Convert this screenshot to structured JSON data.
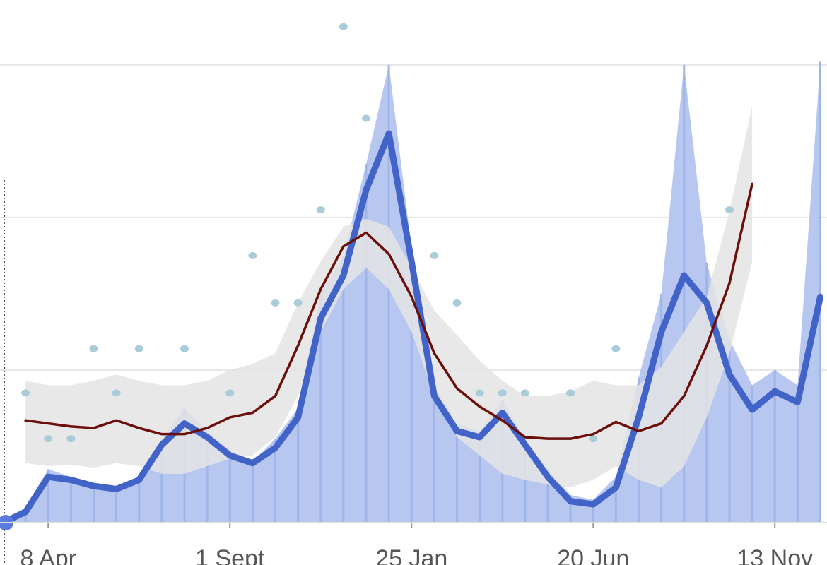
{
  "chart_data": {
    "type": "line",
    "categories": [
      null,
      null,
      "8 Apr",
      null,
      null,
      null,
      null,
      null,
      null,
      null,
      "1 Sept",
      null,
      null,
      null,
      null,
      null,
      null,
      null,
      "25 Jan",
      null,
      null,
      null,
      null,
      null,
      null,
      null,
      "20 Jun",
      null,
      null,
      null,
      null,
      null,
      null,
      null,
      "13 Nov",
      null,
      null
    ],
    "ylim": [
      0,
      330
    ],
    "gridlines": [
      100,
      200,
      300
    ],
    "grid_color": "#e8e8e8",
    "band": {
      "color": "#e4e4e4",
      "upper": [
        null,
        93,
        90,
        90,
        93,
        97,
        93,
        90,
        90,
        93,
        100,
        104,
        111,
        144,
        171,
        194,
        199,
        194,
        167,
        139,
        123,
        106,
        93,
        83,
        83,
        86,
        93,
        90,
        90,
        102,
        125,
        148,
        204,
        273,
        null,
        null,
        null
      ],
      "lower": [
        null,
        39,
        37,
        38,
        36,
        39,
        37,
        32,
        32,
        37,
        42,
        44,
        56,
        83,
        125,
        153,
        167,
        153,
        125,
        83,
        56,
        44,
        32,
        28,
        25,
        23,
        28,
        37,
        28,
        23,
        37,
        69,
        111,
        171,
        null,
        null,
        null
      ]
    },
    "series": [
      {
        "style": "bars",
        "color": "#b7c7ef",
        "line_color": "#9fb5ea",
        "values": [
          0,
          10,
          35,
          30,
          26,
          22,
          30,
          55,
          75,
          60,
          48,
          40,
          55,
          75,
          150,
          175,
          235,
          300,
          180,
          90,
          65,
          60,
          80,
          55,
          35,
          18,
          15,
          30,
          95,
          150,
          300,
          170,
          120,
          90,
          100,
          90,
          302
        ]
      },
      {
        "style": "scatter",
        "color": "#a9ccd9",
        "values": [
          null,
          85,
          55,
          55,
          114,
          85,
          114,
          null,
          114,
          null,
          85,
          175,
          144,
          144,
          205,
          325,
          265,
          null,
          null,
          175,
          144,
          85,
          85,
          85,
          null,
          85,
          55,
          114,
          null,
          null,
          null,
          null,
          205,
          null,
          null,
          null,
          null
        ]
      },
      {
        "style": "line",
        "color": "#4263c8",
        "width": 9,
        "values": [
          0,
          7,
          30,
          28,
          24,
          22,
          28,
          51,
          65,
          56,
          44,
          39,
          49,
          69,
          134,
          162,
          218,
          255,
          171,
          83,
          60,
          56,
          72,
          51,
          30,
          14,
          12,
          23,
          69,
          125,
          162,
          144,
          97,
          74,
          86,
          79,
          148
        ]
      },
      {
        "style": "line",
        "color": "#6b0f0a",
        "width": 3.5,
        "values": [
          null,
          67,
          65,
          63,
          62,
          67,
          62,
          58,
          58,
          62,
          69,
          72,
          83,
          116,
          153,
          181,
          190,
          176,
          148,
          111,
          88,
          76,
          67,
          56,
          55,
          55,
          58,
          66,
          60,
          65,
          83,
          116,
          157,
          222,
          null,
          null,
          null
        ]
      }
    ]
  }
}
